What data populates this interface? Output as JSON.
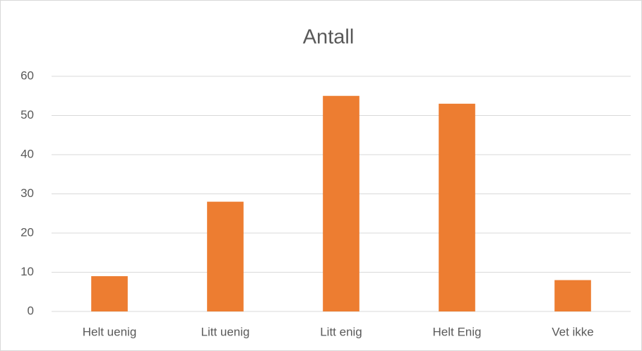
{
  "chart_data": {
    "type": "bar",
    "title": "Antall",
    "categories": [
      "Helt uenig",
      "Litt uenig",
      "Litt enig",
      "Helt Enig",
      "Vet ikke"
    ],
    "values": [
      9,
      28,
      55,
      53,
      8
    ],
    "color": "#ed7d31",
    "ylim": [
      0,
      60
    ],
    "yticks": [
      0,
      10,
      20,
      30,
      40,
      50,
      60
    ],
    "grid": true
  }
}
